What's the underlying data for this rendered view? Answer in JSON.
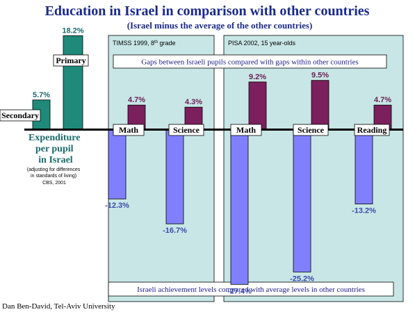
{
  "title": "Education in Israel in comparison with other countries",
  "subtitle": "(Israel minus the average of the other countries)",
  "credit": "Dan Ben-David, Tel-Aviv University",
  "panels": {
    "timss": {
      "title": "TIMSS 1999, 8",
      "sup": "th",
      "title_end": " grade"
    },
    "pisa": {
      "title": "PISA 2002, 15 year-olds"
    }
  },
  "notes": {
    "gaps": "Gaps between Israeli pupils compared with gaps within other countries",
    "levels": "Israeli achievement levels compared with average levels in other countries"
  },
  "expenditure": {
    "label_lines": [
      "Expenditure",
      "per pupil",
      "in Israel"
    ],
    "note_lines": [
      "(adjusting for differences",
      "in standards of living)",
      "CBS, 2001"
    ]
  },
  "colors": {
    "teal": "#1f8a7a",
    "plum": "#7b1f5d",
    "periwinkle": "#8080ff",
    "panel_bg": "#c8e6e6",
    "title": "#1b2a8a"
  },
  "chart_data": {
    "type": "bar",
    "title": "Education in Israel in comparison with other countries",
    "subtitle": "(Israel minus the average of the other countries)",
    "unit": "%",
    "expenditure": [
      {
        "category": "Secondary",
        "value": 5.7,
        "label": "5.7%"
      },
      {
        "category": "Primary",
        "value": 18.2,
        "label": "18.2%"
      }
    ],
    "achievement": [
      {
        "study": "TIMSS 1999, 8th grade",
        "category": "Math",
        "gap": 4.7,
        "gap_label": "4.7%",
        "level": -12.3,
        "level_label": "-12.3%"
      },
      {
        "study": "TIMSS 1999, 8th grade",
        "category": "Science",
        "gap": 4.3,
        "gap_label": "4.3%",
        "level": -16.7,
        "level_label": "-16.7%"
      },
      {
        "study": "PISA 2002, 15 year-olds",
        "category": "Math",
        "gap": 9.2,
        "gap_label": "9.2%",
        "level": -27.4,
        "level_label": "-27.4%"
      },
      {
        "study": "PISA 2002, 15 year-olds",
        "category": "Science",
        "gap": 9.5,
        "gap_label": "9.5%",
        "level": -25.2,
        "level_label": "-25.2%"
      },
      {
        "study": "PISA 2002, 15 year-olds",
        "category": "Reading",
        "gap": 4.7,
        "gap_label": "4.7%",
        "level": -13.2,
        "level_label": "-13.2%"
      }
    ]
  }
}
